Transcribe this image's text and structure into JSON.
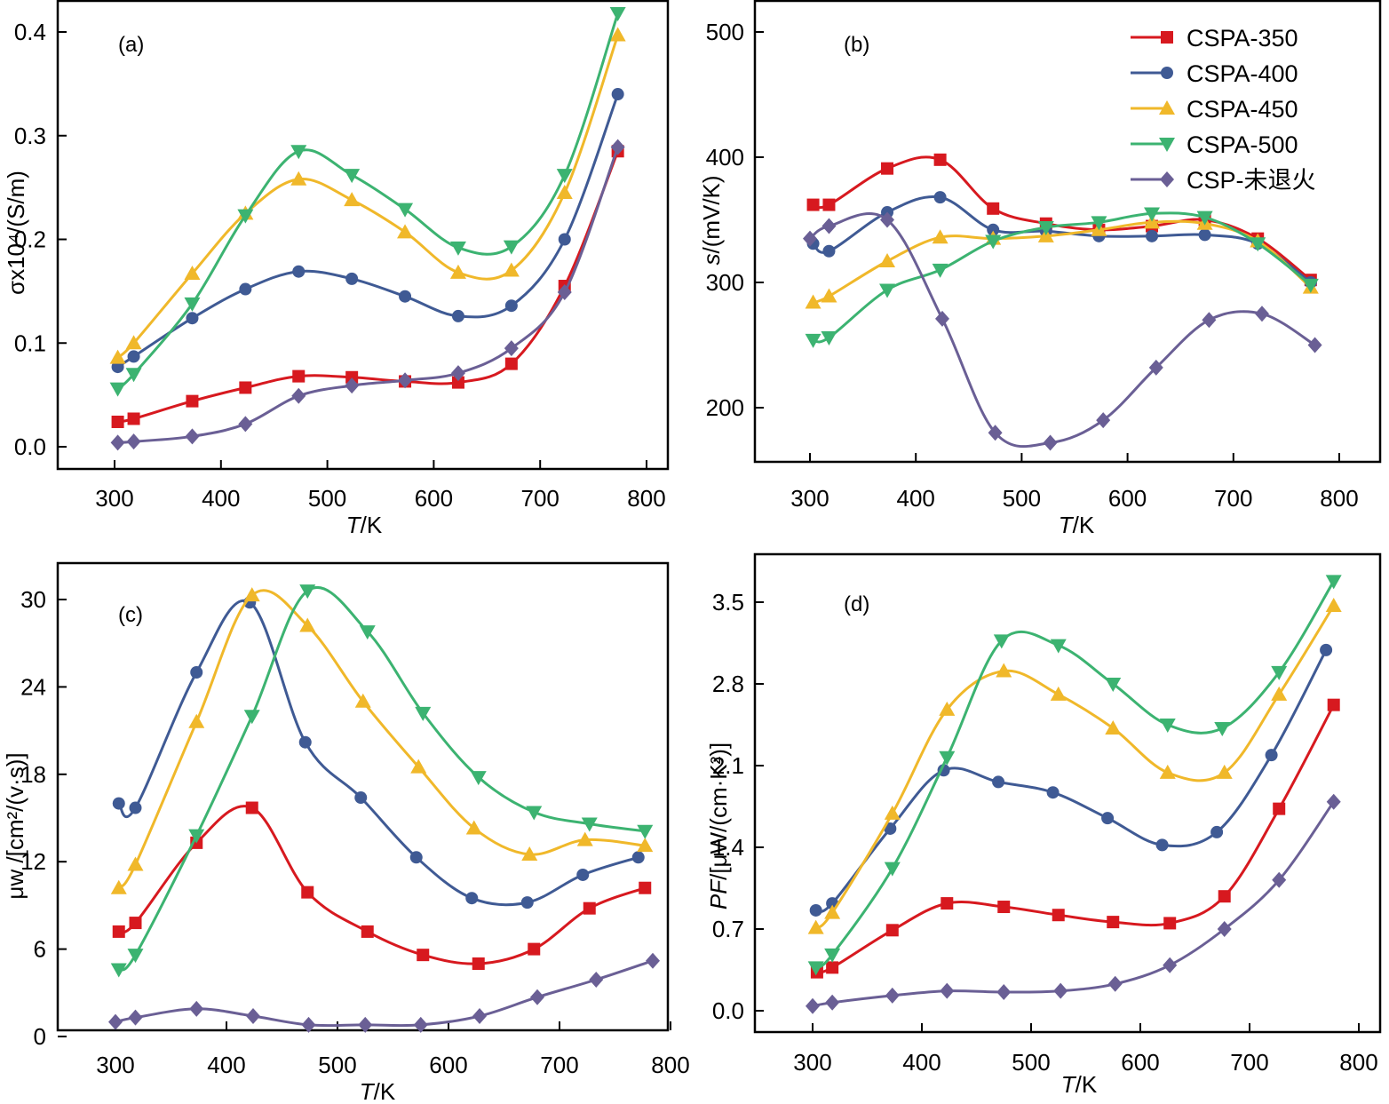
{
  "series_styles": [
    {
      "name": "CSPA-350",
      "color": "#d7191f",
      "marker": "square"
    },
    {
      "name": "CSPA-400",
      "color": "#3f5a94",
      "marker": "circle"
    },
    {
      "name": "CSPA-450",
      "color": "#f0b82a",
      "marker": "triangle-up"
    },
    {
      "name": "CSPA-500",
      "color": "#3cb371",
      "marker": "triangle-down"
    },
    {
      "name": "CSP-未退火",
      "color": "#6a5f95",
      "marker": "diamond"
    }
  ],
  "legend": {
    "placement": "top-right of panel (b)",
    "entries": [
      "CSPA-350",
      "CSPA-400",
      "CSPA-450",
      "CSPA-500",
      "CSP-未退火"
    ]
  },
  "chart_data": [
    {
      "panel": "a",
      "tag": "(a)",
      "type": "line",
      "xlabel_italic": "T",
      "xlabel_rest": "/K",
      "ylabel": "σx10⁴/(S/m)",
      "xlim": [
        280,
        820
      ],
      "ylim": [
        -0.02,
        0.43
      ],
      "xticks": [
        300,
        400,
        500,
        600,
        700,
        800
      ],
      "xtick_labels": [
        "300",
        "400",
        "500",
        "600",
        "700",
        "800"
      ],
      "yticks": [
        0.0,
        0.1,
        0.2,
        0.3,
        0.4
      ],
      "ytick_labels": [
        "0.0",
        "0.1",
        "0.2",
        "0.3",
        "0.4"
      ],
      "series": [
        {
          "name": "CSPA-350",
          "x": [
            303,
            318,
            373,
            423,
            473,
            523,
            573,
            623,
            673,
            723,
            773
          ],
          "y": [
            0.024,
            0.027,
            0.044,
            0.057,
            0.068,
            0.067,
            0.063,
            0.062,
            0.08,
            0.155,
            0.285
          ]
        },
        {
          "name": "CSPA-400",
          "x": [
            303,
            318,
            373,
            423,
            473,
            523,
            573,
            623,
            673,
            723,
            773
          ],
          "y": [
            0.077,
            0.087,
            0.124,
            0.152,
            0.169,
            0.162,
            0.145,
            0.126,
            0.136,
            0.2,
            0.34
          ]
        },
        {
          "name": "CSPA-450",
          "x": [
            303,
            318,
            373,
            423,
            473,
            523,
            573,
            623,
            673,
            723,
            773
          ],
          "y": [
            0.086,
            0.1,
            0.167,
            0.225,
            0.258,
            0.238,
            0.207,
            0.168,
            0.17,
            0.245,
            0.397
          ]
        },
        {
          "name": "CSPA-500",
          "x": [
            303,
            318,
            373,
            423,
            473,
            523,
            573,
            623,
            673,
            723,
            773
          ],
          "y": [
            0.056,
            0.07,
            0.138,
            0.223,
            0.285,
            0.262,
            0.229,
            0.192,
            0.193,
            0.262,
            0.418
          ]
        },
        {
          "name": "CSP-未退火",
          "x": [
            303,
            318,
            373,
            423,
            473,
            523,
            573,
            623,
            673,
            723,
            773
          ],
          "y": [
            0.004,
            0.005,
            0.01,
            0.022,
            0.049,
            0.059,
            0.064,
            0.071,
            0.095,
            0.149,
            0.289
          ]
        }
      ]
    },
    {
      "panel": "b",
      "tag": "(b)",
      "type": "line",
      "xlabel_italic": "T",
      "xlabel_rest": "/K",
      "ylabel_italic": "s",
      "ylabel_rest": "/(mV/K)",
      "xlim": [
        275,
        820
      ],
      "ylim": [
        150,
        525
      ],
      "xticks": [
        300,
        400,
        500,
        600,
        700,
        800
      ],
      "xtick_labels": [
        "300",
        "400",
        "500",
        "600",
        "700",
        "800"
      ],
      "yticks": [
        200,
        300,
        400,
        500
      ],
      "ytick_labels": [
        "200",
        "300",
        "400",
        "500"
      ],
      "series": [
        {
          "name": "CSPA-350",
          "x": [
            303,
            318,
            373,
            423,
            473,
            523,
            573,
            623,
            673,
            723,
            773
          ],
          "y": [
            362,
            362,
            391,
            398,
            359,
            347,
            342,
            345,
            350,
            335,
            302
          ]
        },
        {
          "name": "CSPA-400",
          "x": [
            303,
            318,
            373,
            423,
            473,
            523,
            573,
            623,
            673,
            723,
            773
          ],
          "y": [
            331,
            325,
            356,
            368,
            342,
            341,
            337,
            337,
            338,
            331,
            300
          ]
        },
        {
          "name": "CSPA-450",
          "x": [
            303,
            318,
            373,
            423,
            473,
            523,
            573,
            623,
            673,
            723,
            773
          ],
          "y": [
            284,
            289,
            317,
            336,
            335,
            337,
            342,
            348,
            347,
            333,
            296
          ]
        },
        {
          "name": "CSPA-500",
          "x": [
            303,
            318,
            373,
            423,
            473,
            523,
            573,
            623,
            673,
            723,
            773
          ],
          "y": [
            254,
            256,
            294,
            310,
            333,
            344,
            348,
            355,
            352,
            331,
            298
          ]
        },
        {
          "name": "CSP-未退火",
          "x": [
            300,
            318,
            373,
            425,
            475,
            527,
            577,
            627,
            677,
            727,
            777
          ],
          "y": [
            335,
            345,
            350,
            271,
            180,
            172,
            190,
            232,
            270,
            275,
            250
          ]
        }
      ]
    },
    {
      "panel": "c",
      "tag": "(c)",
      "type": "line",
      "xlabel_italic": "T",
      "xlabel_rest": "/K",
      "ylabel": "μw /[cm²/(v·s)]",
      "xlim": [
        278,
        800
      ],
      "ylim": [
        -0.2,
        33.2
      ],
      "xticks": [
        300,
        400,
        500,
        600,
        700,
        800
      ],
      "xtick_labels": [
        "300",
        "400",
        "500",
        "600",
        "700",
        "800"
      ],
      "yticks": [
        0,
        6,
        12,
        18,
        24,
        30
      ],
      "ytick_labels": [
        "0",
        "6",
        "12",
        "18",
        "24",
        "30"
      ],
      "series": [
        {
          "name": "CSPA-350",
          "x": [
            303,
            318,
            373,
            423,
            473,
            527,
            577,
            627,
            677,
            727,
            777
          ],
          "y": [
            7.2,
            7.8,
            13.3,
            15.7,
            9.9,
            7.2,
            5.6,
            5.0,
            6.0,
            8.8,
            10.2
          ]
        },
        {
          "name": "CSPA-400",
          "x": [
            303,
            318,
            373,
            421,
            471,
            521,
            571,
            621,
            671,
            721,
            771
          ],
          "y": [
            16.0,
            15.7,
            25.0,
            29.8,
            20.2,
            16.4,
            12.3,
            9.5,
            9.2,
            11.1,
            12.3
          ]
        },
        {
          "name": "CSPA-450",
          "x": [
            303,
            318,
            373,
            423,
            473,
            523,
            573,
            623,
            673,
            723,
            777
          ],
          "y": [
            10.2,
            11.8,
            21.6,
            30.3,
            28.2,
            23.0,
            18.5,
            14.3,
            12.5,
            13.5,
            13.1
          ]
        },
        {
          "name": "CSPA-500",
          "x": [
            303,
            318,
            373,
            423,
            473,
            527,
            577,
            627,
            677,
            727,
            777
          ],
          "y": [
            4.6,
            5.6,
            13.8,
            22.0,
            30.6,
            27.8,
            22.2,
            17.8,
            15.4,
            14.6,
            14.1
          ]
        },
        {
          "name": "CSP-未退火",
          "x": [
            300,
            318,
            373,
            424,
            474,
            525,
            575,
            628,
            680,
            733,
            784
          ],
          "y": [
            1.0,
            1.3,
            1.9,
            1.4,
            0.8,
            0.8,
            0.8,
            1.4,
            2.7,
            3.9,
            5.2
          ]
        }
      ]
    },
    {
      "panel": "d",
      "tag": "(d)",
      "type": "line",
      "xlabel_italic": "T",
      "xlabel_rest": "/K",
      "ylabel_italic": "PF",
      "ylabel_rest": "/[μW/(cm·K²)]",
      "xlim": [
        275,
        825
      ],
      "ylim": [
        -0.1,
        3.9
      ],
      "xticks": [
        300,
        400,
        500,
        600,
        700,
        800
      ],
      "xtick_labels": [
        "300",
        "400",
        "500",
        "600",
        "700",
        "800"
      ],
      "yticks": [
        0.0,
        0.7,
        1.4,
        2.1,
        2.8,
        3.5
      ],
      "ytick_labels": [
        "0.0",
        "0.7",
        "1.4",
        "2.1",
        "2.8",
        "3.5"
      ],
      "series": [
        {
          "name": "CSPA-350",
          "x": [
            304,
            318,
            373,
            423,
            475,
            525,
            575,
            627,
            677,
            727,
            777
          ],
          "y": [
            0.33,
            0.37,
            0.69,
            0.92,
            0.89,
            0.82,
            0.76,
            0.75,
            0.98,
            1.73,
            2.62
          ]
        },
        {
          "name": "CSPA-400",
          "x": [
            303,
            318,
            371,
            420,
            470,
            520,
            570,
            620,
            670,
            720,
            770
          ],
          "y": [
            0.86,
            0.92,
            1.56,
            2.06,
            1.96,
            1.87,
            1.65,
            1.42,
            1.53,
            2.19,
            3.09
          ]
        },
        {
          "name": "CSPA-450",
          "x": [
            303,
            318,
            373,
            423,
            475,
            525,
            575,
            625,
            677,
            727,
            777
          ],
          "y": [
            0.71,
            0.84,
            1.69,
            2.58,
            2.91,
            2.71,
            2.42,
            2.04,
            2.04,
            2.71,
            3.47
          ]
        },
        {
          "name": "CSPA-500",
          "x": [
            303,
            318,
            373,
            423,
            473,
            525,
            575,
            625,
            675,
            727,
            777
          ],
          "y": [
            0.37,
            0.48,
            1.22,
            2.17,
            3.17,
            3.13,
            2.8,
            2.45,
            2.42,
            2.9,
            3.68
          ]
        },
        {
          "name": "CSP-未退火",
          "x": [
            300,
            318,
            373,
            423,
            475,
            527,
            577,
            627,
            677,
            727,
            777
          ],
          "y": [
            0.04,
            0.07,
            0.13,
            0.17,
            0.16,
            0.17,
            0.23,
            0.39,
            0.7,
            1.12,
            1.79
          ]
        }
      ]
    }
  ]
}
